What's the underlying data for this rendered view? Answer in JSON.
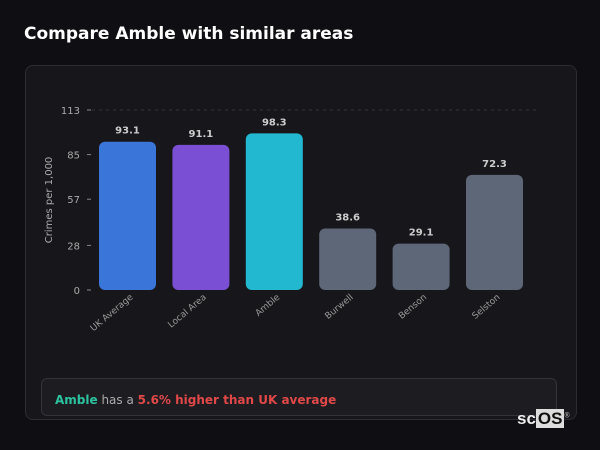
{
  "title": "Compare Amble with similar areas",
  "chart_data": {
    "type": "bar",
    "title": "",
    "xlabel": "",
    "ylabel": "Crimes per 1,000",
    "ylim": [
      0,
      113
    ],
    "yticks": [
      0,
      28,
      57,
      85,
      113
    ],
    "grid": "dashed line at top tick only",
    "categories": [
      "UK Average",
      "Local Area",
      "Amble",
      "Burwell",
      "Benson",
      "Selston"
    ],
    "values": [
      93.1,
      91.1,
      98.3,
      38.6,
      29.1,
      72.3
    ],
    "value_labels": [
      "93.1",
      "91.1",
      "98.3",
      "38.6",
      "29.1",
      "72.3"
    ],
    "colors": [
      "#3a75d9",
      "#7b4fd4",
      "#22b8cf",
      "#5d6778",
      "#5d6778",
      "#5d6778"
    ]
  },
  "summary": {
    "area": "Amble",
    "middle": " has a ",
    "comparison": "5.6% higher than UK average"
  },
  "logo": {
    "text_a": "sc",
    "text_b": "OS",
    "mark": "®"
  }
}
